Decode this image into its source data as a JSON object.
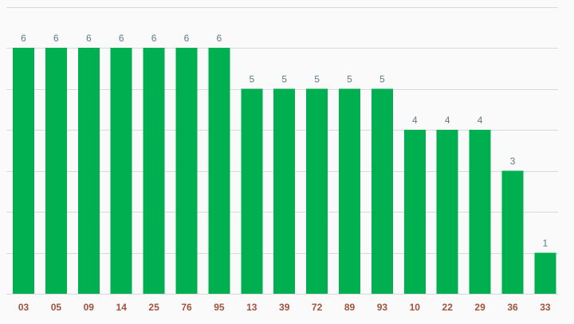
{
  "chart_data": {
    "type": "bar",
    "categories": [
      "03",
      "05",
      "09",
      "14",
      "25",
      "76",
      "95",
      "13",
      "39",
      "72",
      "89",
      "93",
      "10",
      "22",
      "29",
      "36",
      "33"
    ],
    "values": [
      6,
      6,
      6,
      6,
      6,
      6,
      6,
      5,
      5,
      5,
      5,
      5,
      4,
      4,
      4,
      3,
      1
    ],
    "title": "",
    "xlabel": "",
    "ylabel": "",
    "ylim": [
      0,
      7
    ],
    "grid": true,
    "legend": "none",
    "data_labels": true,
    "y_tick_labels_shown": false
  },
  "colors": {
    "bar": "#00b050",
    "value_label": "#5f7a8c",
    "tick_label": "#a0523d",
    "grid": "#d9d9d9",
    "background": "#fafafa"
  }
}
